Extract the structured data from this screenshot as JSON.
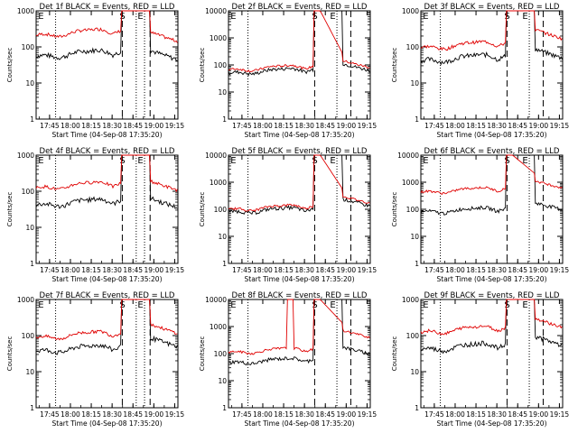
{
  "chart_data": {
    "type": "line",
    "layout": "3x3 grid of panels",
    "yscale": "log",
    "xlabel": "Start Time (04-Sep-08 17:35:20)",
    "ylabel": "Counts/sec",
    "x_tick_labels": [
      "17:45",
      "18:00",
      "18:15",
      "18:30",
      "18:45",
      "19:00",
      "19:15"
    ],
    "x_tick_minutes": [
      9.67,
      24.67,
      39.67,
      54.67,
      69.67,
      84.67,
      99.67
    ],
    "xlim_minutes": [
      0,
      102
    ],
    "series_names": [
      "Events",
      "LLD"
    ],
    "series_colors": {
      "Events": "#000000",
      "LLD": "#e00000"
    },
    "annotations": [
      "E",
      "S",
      "E"
    ],
    "panels": [
      {
        "title": "Det 1f BLACK = Events, RED = LLD",
        "ylim": [
          1,
          1000
        ],
        "y_tick_labels": [
          "1",
          "10",
          "100",
          "1000"
        ],
        "black_base": 60,
        "red_ratio": 3.8,
        "black_end": 50,
        "red_end": 160,
        "red_spike": false,
        "red_plateau": false,
        "dashed_x": [
          62,
          82
        ],
        "dotted_x": [
          14,
          72,
          78
        ]
      },
      {
        "title": "Det 2f BLACK = Events, RED = LLD",
        "ylim": [
          1,
          10000
        ],
        "y_tick_labels": [
          "1",
          "10",
          "100",
          "1000",
          "10000"
        ],
        "black_base": 55,
        "red_ratio": 1.3,
        "black_end": 70,
        "red_end": 90,
        "red_spike": false,
        "red_plateau": true,
        "dashed_x": [
          62,
          88
        ],
        "dotted_x": [
          14,
          78
        ]
      },
      {
        "title": "Det 3f BLACK = Events, RED = LLD",
        "ylim": [
          1,
          1000
        ],
        "y_tick_labels": [
          "1",
          "10",
          "100",
          "1000"
        ],
        "black_base": 45,
        "red_ratio": 2.3,
        "black_end": 55,
        "red_end": 190,
        "red_spike": false,
        "red_plateau": false,
        "dashed_x": [
          62,
          88
        ],
        "dotted_x": [
          14,
          78
        ]
      },
      {
        "title": "Det 4f BLACK = Events, RED = LLD",
        "ylim": [
          1,
          1000
        ],
        "y_tick_labels": [
          "1",
          "10",
          "100",
          "1000"
        ],
        "black_base": 45,
        "red_ratio": 3.0,
        "black_end": 40,
        "red_end": 120,
        "red_spike": false,
        "red_plateau": false,
        "dashed_x": [
          62,
          82
        ],
        "dotted_x": [
          14,
          72,
          78
        ]
      },
      {
        "title": "Det 5f BLACK = Events, RED = LLD",
        "ylim": [
          1,
          10000
        ],
        "y_tick_labels": [
          "1",
          "10",
          "100",
          "1000",
          "10000"
        ],
        "black_base": 85,
        "red_ratio": 1.25,
        "black_end": 150,
        "red_end": 190,
        "red_spike": false,
        "red_plateau": true,
        "dashed_x": [
          62,
          88
        ],
        "dotted_x": [
          14,
          78
        ]
      },
      {
        "title": "Det 6f BLACK = Events, RED = LLD",
        "ylim": [
          1,
          10000
        ],
        "y_tick_labels": [
          "1",
          "10",
          "100",
          "1000",
          "10000"
        ],
        "black_base": 85,
        "red_ratio": 5.5,
        "black_end": 110,
        "red_end": 700,
        "red_spike": false,
        "red_plateau": true,
        "dashed_x": [
          62,
          88
        ],
        "dotted_x": [
          14,
          78
        ]
      },
      {
        "title": "Det 7f BLACK = Events, RED = LLD",
        "ylim": [
          1,
          1000
        ],
        "y_tick_labels": [
          "1",
          "10",
          "100",
          "1000"
        ],
        "black_base": 40,
        "red_ratio": 2.4,
        "black_end": 55,
        "red_end": 130,
        "red_spike": false,
        "red_plateau": false,
        "dashed_x": [
          62,
          82
        ],
        "dotted_x": [
          14,
          72,
          78
        ]
      },
      {
        "title": "Det 8f BLACK = Events, RED = LLD",
        "ylim": [
          1,
          10000
        ],
        "y_tick_labels": [
          "1",
          "10",
          "100",
          "1000",
          "10000"
        ],
        "black_base": 50,
        "red_ratio": 2.4,
        "black_end": 110,
        "red_end": 450,
        "red_spike": true,
        "red_plateau": true,
        "dashed_x": [
          62,
          88
        ],
        "dotted_x": [
          14,
          78
        ]
      },
      {
        "title": "Det 9f BLACK = Events, RED = LLD",
        "ylim": [
          1,
          1000
        ],
        "y_tick_labels": [
          "1",
          "10",
          "100",
          "1000"
        ],
        "black_base": 45,
        "red_ratio": 3.0,
        "black_end": 60,
        "red_end": 190,
        "red_spike": false,
        "red_plateau": false,
        "dashed_x": [
          62,
          88
        ],
        "dotted_x": [
          14,
          78
        ]
      }
    ]
  }
}
